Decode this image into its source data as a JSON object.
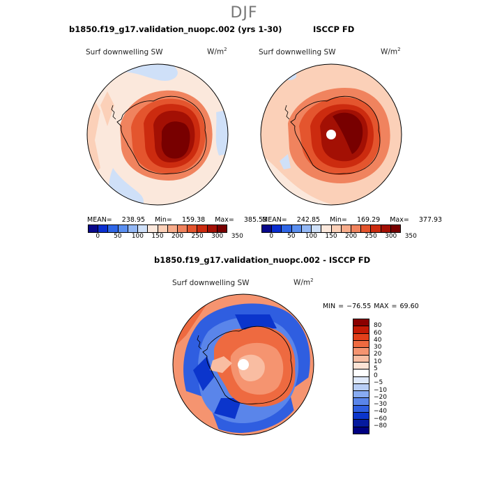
{
  "figure": {
    "title": "DJF"
  },
  "panels": [
    {
      "title": "b1850.f19_g17.validation_nuopc.002 (yrs 1-30)",
      "variable": "Surf downwelling SW",
      "units_base": "W/m",
      "units_exp": "2",
      "mean_label": "MEAN=",
      "mean_value": "238.95",
      "min_label": "Min=",
      "min_value": "159.38",
      "max_label": "Max=",
      "max_value": "385.53",
      "colorbar_ticks": [
        "0",
        "50",
        "100",
        "150",
        "200",
        "250",
        "300",
        "350"
      ]
    },
    {
      "title": "ISCCP FD",
      "variable": "Surf downwelling SW",
      "units_base": "W/m",
      "units_exp": "2",
      "mean_label": "MEAN=",
      "mean_value": "242.85",
      "min_label": "Min=",
      "min_value": "169.29",
      "max_label": "Max=",
      "max_value": "377.93",
      "colorbar_ticks": [
        "0",
        "50",
        "100",
        "150",
        "200",
        "250",
        "300",
        "350"
      ]
    }
  ],
  "diff_panel": {
    "title": "b1850.f19_g17.validation_nuopc.002 - ISCCP FD",
    "variable": "Surf downwelling SW",
    "units_base": "W/m",
    "units_exp": "2",
    "minmax_text": "MIN = −76.55 MAX =  69.60",
    "colorbar_labels": [
      "80",
      "60",
      "40",
      "30",
      "20",
      "10",
      "5",
      "0",
      "−5",
      "−10",
      "−20",
      "−30",
      "−40",
      "−60",
      "−80"
    ]
  },
  "colors": {
    "abs_scale": [
      "#08088a",
      "#0a2ed0",
      "#2f66e6",
      "#5b8ff0",
      "#94b8f5",
      "#cfe0f8",
      "#fbe8dc",
      "#fbd0b8",
      "#f7ac8b",
      "#f0835e",
      "#e4552e",
      "#cc2b0f",
      "#a31004",
      "#780000"
    ],
    "diff_scale": [
      "#8b0000",
      "#c41a05",
      "#e2401b",
      "#ee6a40",
      "#f59470",
      "#f9bda2",
      "#fde3d5",
      "#ffffff",
      "#dfe9fb",
      "#b8cef6",
      "#88abf1",
      "#5a85ea",
      "#2f5ee0",
      "#0b35cc",
      "#061a9e",
      "#000080"
    ],
    "land_outline": "#000000"
  }
}
